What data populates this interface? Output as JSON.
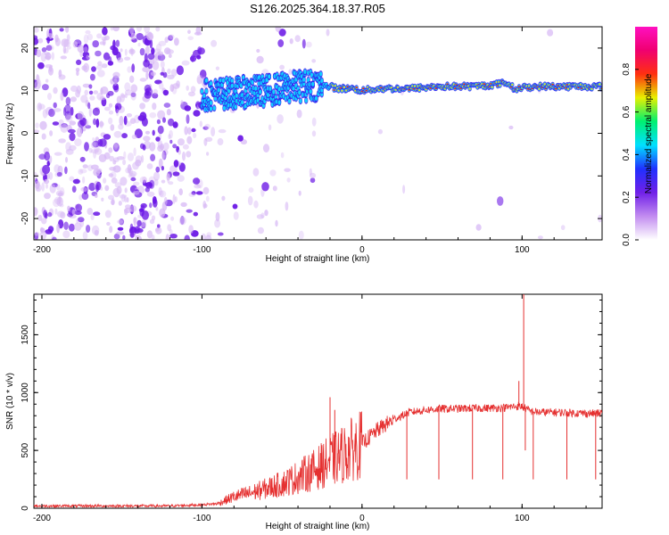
{
  "title": "S126.2025.364.18.37.R05",
  "colors": {
    "snr_line": "#e53030",
    "spectrogram_low": "#d7b8f5",
    "spectrogram_mid": "#6a16e6",
    "ridge": "#f0d020"
  },
  "chart_data": [
    {
      "type": "heatmap",
      "name": "spectrogram",
      "xlabel": "Height of straight line (km)",
      "ylabel": "Frequency (Hz)",
      "xlim": [
        -205,
        150
      ],
      "ylim": [
        -25,
        25
      ],
      "xticks": [
        -200,
        -100,
        0,
        100
      ],
      "yticks": [
        -20,
        -10,
        0,
        10,
        20
      ],
      "colorbar": {
        "label": "Normalized spectral amplitude",
        "range": [
          0,
          1
        ],
        "ticks": [
          "0.0",
          "0.2",
          "0.4",
          "0.6",
          "0.8"
        ],
        "colors": [
          "#ffffff",
          "#c28cf0",
          "#7020e8",
          "#2030ff",
          "#00e0ff",
          "#00f070",
          "#e8f000",
          "#ff3010",
          "#f00070",
          "#ff10c0"
        ]
      },
      "ridge": {
        "x": [
          -100,
          -80,
          -60,
          -40,
          -25,
          -15,
          -5,
          0,
          10,
          30,
          50,
          70,
          85,
          90,
          95,
          110,
          130,
          150
        ],
        "y": [
          9,
          9.5,
          10,
          11,
          11.5,
          10.5,
          10.5,
          10,
          10.5,
          10.5,
          11,
          11,
          11.5,
          12,
          10.5,
          11,
          11,
          11
        ]
      }
    },
    {
      "type": "line",
      "name": "snr",
      "xlabel": "Height of straight line (km)",
      "ylabel": "SNR (10 * v/v)",
      "xlim": [
        -205,
        150
      ],
      "ylim": [
        0,
        1850
      ],
      "xticks": [
        -200,
        -100,
        0,
        100
      ],
      "yticks": [
        0,
        500,
        1000,
        1500
      ],
      "series": [
        {
          "x": [
            -205,
            -180,
            -150,
            -120,
            -100,
            -90,
            -80,
            -70,
            -60,
            -50,
            -40,
            -30,
            -20,
            -10,
            0,
            10,
            20,
            30,
            40,
            50,
            60,
            70,
            80,
            90,
            95,
            100,
            105,
            110,
            120,
            130,
            140,
            150
          ],
          "y": [
            20,
            20,
            20,
            20,
            30,
            40,
            100,
            130,
            170,
            210,
            270,
            330,
            410,
            480,
            560,
            680,
            770,
            830,
            850,
            860,
            860,
            865,
            865,
            870,
            880,
            880,
            840,
            830,
            830,
            825,
            820,
            820
          ]
        }
      ],
      "spikes": {
        "x": [
          -20,
          -17,
          28,
          48,
          69,
          88,
          98,
          101,
          102,
          107,
          128,
          146
        ],
        "y": [
          960,
          850,
          250,
          250,
          250,
          250,
          1100,
          1850,
          500,
          250,
          250,
          250
        ]
      }
    }
  ]
}
